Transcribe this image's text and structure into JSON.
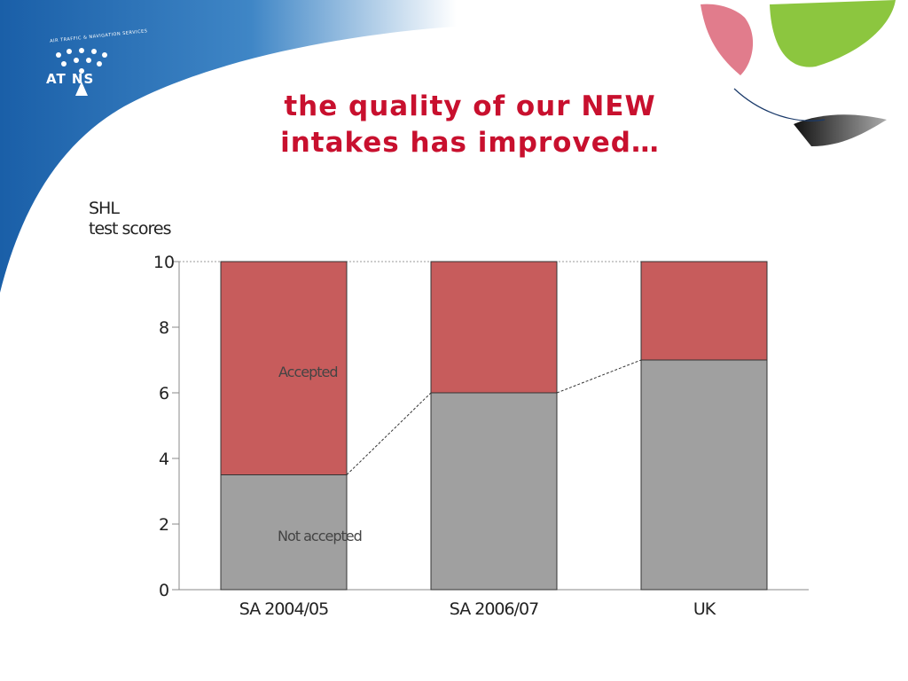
{
  "slide": {
    "title_line1": "the quality of our NEW",
    "title_line2": "intakes has improved…"
  },
  "logo": {
    "text": "AT NS",
    "ring_text": "AIR TRAFFIC & NAVIGATION SERVICES",
    "colors": {
      "white": "#ffffff"
    }
  },
  "decor": {
    "blue": "#1a5fa8",
    "red_leaf": "#c8102e",
    "green_leaf": "#8cc63f",
    "grey_leaf": "#333333"
  },
  "chart_data": {
    "type": "bar",
    "stacked": true,
    "ylabel_line1": "SHL",
    "ylabel_line2": "test scores",
    "ylim": [
      0,
      10
    ],
    "yticks": [
      0,
      2,
      4,
      6,
      8,
      10
    ],
    "categories": [
      "SA 2004/05",
      "SA 2006/07",
      "UK"
    ],
    "series": [
      {
        "name": "Not accepted",
        "values": [
          3.5,
          6,
          7
        ],
        "color": "#a0a0a0"
      },
      {
        "name": "Accepted",
        "values": [
          6.5,
          4,
          3
        ],
        "color": "#c75c5c"
      }
    ],
    "annotations": [
      "Accepted",
      "Not accepted"
    ],
    "connector_line": "dashed",
    "grid": false
  }
}
